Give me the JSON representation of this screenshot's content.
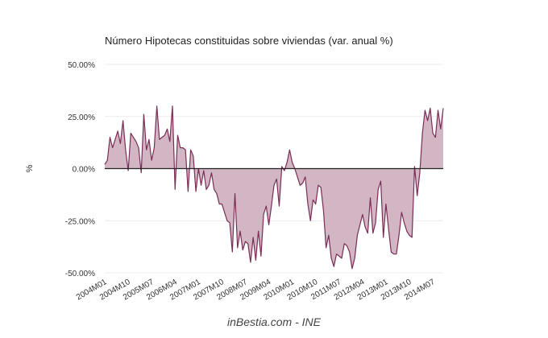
{
  "title": "Número Hipotecas constituidas sobre viviendas (var. anual %)",
  "source": "inBestia.com - INE",
  "colors": {
    "line": "#7a2d57",
    "fill": "#d3b6c4",
    "zero": "#222222",
    "grid": "#ececec"
  },
  "chart_data": {
    "type": "area",
    "title": "Número Hipotecas constituidas sobre viviendas (var. anual %)",
    "xlabel": "",
    "ylabel": "%",
    "ylim": [
      -50,
      50
    ],
    "yticks": [
      50,
      25,
      0,
      -25,
      -50
    ],
    "ytick_labels": [
      "50.00%",
      "25.00%",
      "0.00%",
      "-25.00%",
      "-50.00%"
    ],
    "xtick_labels": [
      "2004M01",
      "2004M10",
      "2005M07",
      "2006M04",
      "2007M01",
      "2007M10",
      "2008M07",
      "2009M04",
      "2010M01",
      "2010M10",
      "2011M07",
      "2012M04",
      "2013M01",
      "2013M10",
      "2014M07"
    ],
    "grid": true,
    "legend": "none",
    "x_start": "2004M01",
    "x_frequency": "monthly",
    "series": [
      {
        "values": [
          2,
          4,
          15,
          10,
          14,
          18,
          12,
          23,
          9,
          -1,
          17,
          15,
          13,
          10,
          -2,
          26,
          9,
          14,
          4,
          10,
          30,
          14,
          15,
          16,
          19,
          13,
          30,
          -10,
          16,
          10,
          10,
          9,
          -11,
          9,
          6,
          -11,
          0,
          -8,
          -1,
          -10,
          -8,
          -2,
          -10,
          -12,
          -17,
          -17,
          -21,
          -25,
          -26,
          -40,
          -12,
          -38,
          -30,
          -39,
          -35,
          -36,
          -45,
          -33,
          -44,
          -30,
          -42,
          -22,
          -18,
          -27,
          -18,
          -8,
          -5,
          -18,
          1,
          -1,
          3,
          9,
          3,
          0,
          -4,
          -8,
          -7,
          -4,
          -17,
          -25,
          -15,
          -17,
          -8,
          -9,
          -20,
          -38,
          -32,
          -43,
          -47,
          -41,
          -42,
          -43,
          -36,
          -37,
          -40,
          -48,
          -43,
          -32,
          -27,
          -22,
          -28,
          -31,
          -14,
          -31,
          -26,
          -10,
          -6,
          -33,
          -17,
          -29,
          -40,
          -41,
          -41,
          -32,
          -21,
          -26,
          -30,
          -32,
          -33,
          1,
          -13,
          -2,
          17,
          28,
          23,
          29,
          17,
          15,
          28,
          19,
          29
        ]
      }
    ]
  }
}
